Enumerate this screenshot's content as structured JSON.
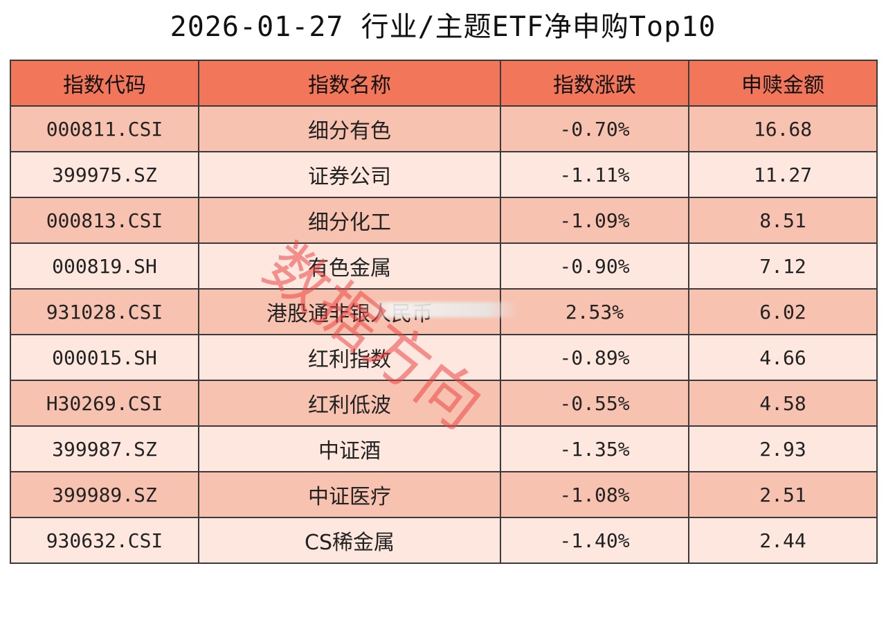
{
  "title": "2026-01-27 行业/主题ETF净申购Top10",
  "columns": [
    "指数代码",
    "指数名称",
    "指数涨跌",
    "申赎金额"
  ],
  "rows": [
    {
      "code": "000811.CSI",
      "name": "细分有色",
      "change": "-0.70%",
      "amount": "16.68"
    },
    {
      "code": "399975.SZ",
      "name": "证券公司",
      "change": "-1.11%",
      "amount": "11.27"
    },
    {
      "code": "000813.CSI",
      "name": "细分化工",
      "change": "-1.09%",
      "amount": "8.51"
    },
    {
      "code": "000819.SH",
      "name": "有色金属",
      "change": "-0.90%",
      "amount": "7.12"
    },
    {
      "code": "931028.CSI",
      "name": "港股通非银人民币",
      "change": "2.53%",
      "amount": "6.02"
    },
    {
      "code": "000015.SH",
      "name": "红利指数",
      "change": "-0.89%",
      "amount": "4.66"
    },
    {
      "code": "H30269.CSI",
      "name": "红利低波",
      "change": "-0.55%",
      "amount": "4.58"
    },
    {
      "code": "399987.SZ",
      "name": "中证酒",
      "change": "-1.35%",
      "amount": "2.93"
    },
    {
      "code": "399989.SZ",
      "name": "中证医疗",
      "change": "-1.08%",
      "amount": "2.51"
    },
    {
      "code": "930632.CSI",
      "name": "CS稀金属",
      "change": "-1.40%",
      "amount": "2.44"
    }
  ],
  "watermark": "数据方向",
  "colors": {
    "header": "#f2775a",
    "row_odd": "#f8c2b0",
    "row_even": "#fde7df",
    "watermark": "#eb4646"
  }
}
